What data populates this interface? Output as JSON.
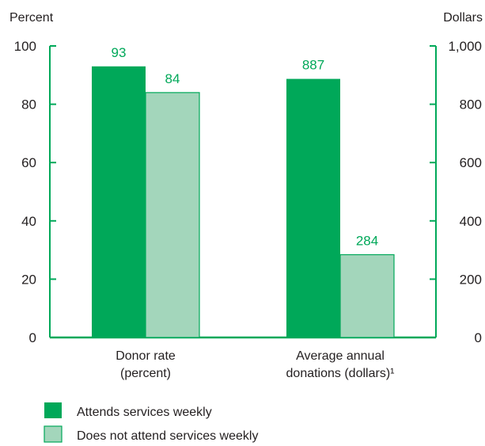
{
  "colors": {
    "primary": "#00a859",
    "secondary": "#a3d6bb",
    "axis": "#00a859",
    "text": "#231f20"
  },
  "chart_data": {
    "type": "bar",
    "left_axis": {
      "title": "Percent",
      "ylim": [
        0,
        100
      ],
      "ticks": [
        "0",
        "20",
        "40",
        "60",
        "80",
        "100"
      ]
    },
    "right_axis": {
      "title": "Dollars",
      "ylim": [
        0,
        1000
      ],
      "ticks": [
        "0",
        "200",
        "400",
        "600",
        "800",
        "1,000"
      ]
    },
    "categories": [
      {
        "lines": [
          "Donor rate",
          "(percent)"
        ],
        "axis": "left"
      },
      {
        "lines": [
          "Average annual",
          "donations (dollars)¹"
        ],
        "axis": "right"
      }
    ],
    "series": [
      {
        "name": "Attends services weekly",
        "values": [
          93,
          887
        ],
        "labels": [
          "93",
          "887"
        ],
        "color": "#00a859"
      },
      {
        "name": "Does not attend services weekly",
        "values": [
          84,
          284
        ],
        "labels": [
          "84",
          "284"
        ],
        "color": "#a3d6bb"
      }
    ],
    "legend": "bottom-left",
    "grid": false
  }
}
